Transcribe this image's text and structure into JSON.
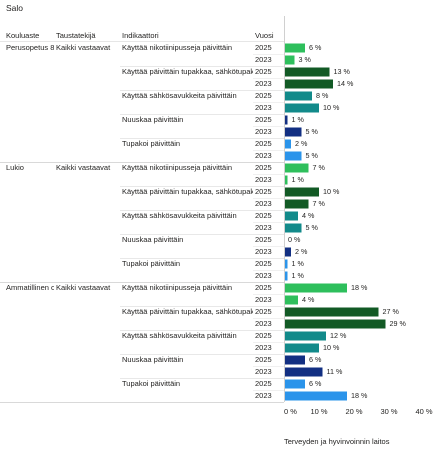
{
  "title": "Salo",
  "headers": {
    "kouluaste": "Kouluaste",
    "taustatekija": "Taustatekijä",
    "indikaattori": "Indikaattori",
    "vuosi": "Vuosi"
  },
  "footer": "Terveyden ja hyvinvoinnin laitos",
  "colors": {
    "Käyttää nikotiinipusseja päivittäin": "#2ebf5c",
    "Käyttää päivittäin tupakkaa, sähkötupakkaa tai nuuskaa": "#125a25",
    "Käyttää sähkösavukkeita päivittäin": "#128a8a",
    "Nuuskaa päivittäin": "#122f82",
    "Tupakoi päivittäin": "#2b94ea"
  },
  "chart_data": {
    "type": "bar",
    "orientation": "horizontal",
    "x_ticks": [
      "0 %",
      "10 %",
      "20 %",
      "30 %",
      "40 %"
    ],
    "xlim": [
      0,
      40
    ],
    "value_suffix": " %",
    "groups": [
      {
        "kouluaste": "Perusopetus 8",
        "taustatekija": "Kaikki vastaavat",
        "indicators": [
          {
            "label": "Käyttää nikotiinipusseja päivittäin",
            "key": "Käyttää nikotiinipusseja päivittäin",
            "rows": [
              {
                "year": "2025",
                "value": 6
              },
              {
                "year": "2023",
                "value": 3
              }
            ]
          },
          {
            "label": "Käyttää päivittäin tupakkaa, sähkötupak",
            "key": "Käyttää päivittäin tupakkaa, sähkötupakkaa tai nuuskaa",
            "rows": [
              {
                "year": "2025",
                "value": 13
              },
              {
                "year": "2023",
                "value": 14
              }
            ]
          },
          {
            "label": "Käyttää sähkösavukkeita päivittäin",
            "key": "Käyttää sähkösavukkeita päivittäin",
            "rows": [
              {
                "year": "2025",
                "value": 8
              },
              {
                "year": "2023",
                "value": 10
              }
            ]
          },
          {
            "label": "Nuuskaa päivittäin",
            "key": "Nuuskaa päivittäin",
            "rows": [
              {
                "year": "2025",
                "value": 1
              },
              {
                "year": "2023",
                "value": 5
              }
            ]
          },
          {
            "label": "Tupakoi päivittäin",
            "key": "Tupakoi päivittäin",
            "rows": [
              {
                "year": "2025",
                "value": 2
              },
              {
                "year": "2023",
                "value": 5
              }
            ]
          }
        ]
      },
      {
        "kouluaste": "Lukio",
        "taustatekija": "Kaikki vastaavat",
        "indicators": [
          {
            "label": "Käyttää nikotiinipusseja päivittäin",
            "key": "Käyttää nikotiinipusseja päivittäin",
            "rows": [
              {
                "year": "2025",
                "value": 7
              },
              {
                "year": "2023",
                "value": 1
              }
            ]
          },
          {
            "label": "Käyttää päivittäin tupakkaa, sähkötupak",
            "key": "Käyttää päivittäin tupakkaa, sähkötupakkaa tai nuuskaa",
            "rows": [
              {
                "year": "2025",
                "value": 10
              },
              {
                "year": "2023",
                "value": 7
              }
            ]
          },
          {
            "label": "Käyttää sähkösavukkeita päivittäin",
            "key": "Käyttää sähkösavukkeita päivittäin",
            "rows": [
              {
                "year": "2025",
                "value": 4
              },
              {
                "year": "2023",
                "value": 5
              }
            ]
          },
          {
            "label": "Nuuskaa päivittäin",
            "key": "Nuuskaa päivittäin",
            "rows": [
              {
                "year": "2025",
                "value": 0
              },
              {
                "year": "2023",
                "value": 2
              }
            ]
          },
          {
            "label": "Tupakoi päivittäin",
            "key": "Tupakoi päivittäin",
            "rows": [
              {
                "year": "2025",
                "value": 1
              },
              {
                "year": "2023",
                "value": 1
              }
            ]
          }
        ]
      },
      {
        "kouluaste": "Ammatillinen o",
        "taustatekija": "Kaikki vastaavat",
        "indicators": [
          {
            "label": "Käyttää nikotiinipusseja päivittäin",
            "key": "Käyttää nikotiinipusseja päivittäin",
            "rows": [
              {
                "year": "2025",
                "value": 18
              },
              {
                "year": "2023",
                "value": 4
              }
            ]
          },
          {
            "label": "Käyttää päivittäin tupakkaa, sähkötupak",
            "key": "Käyttää päivittäin tupakkaa, sähkötupakkaa tai nuuskaa",
            "rows": [
              {
                "year": "2025",
                "value": 27
              },
              {
                "year": "2023",
                "value": 29
              }
            ]
          },
          {
            "label": "Käyttää sähkösavukkeita päivittäin",
            "key": "Käyttää sähkösavukkeita päivittäin",
            "rows": [
              {
                "year": "2025",
                "value": 12
              },
              {
                "year": "2023",
                "value": 10
              }
            ]
          },
          {
            "label": "Nuuskaa päivittäin",
            "key": "Nuuskaa päivittäin",
            "rows": [
              {
                "year": "2025",
                "value": 6
              },
              {
                "year": "2023",
                "value": 11
              }
            ]
          },
          {
            "label": "Tupakoi päivittäin",
            "key": "Tupakoi päivittäin",
            "rows": [
              {
                "year": "2025",
                "value": 6
              },
              {
                "year": "2023",
                "value": 18
              }
            ]
          }
        ]
      }
    ]
  }
}
